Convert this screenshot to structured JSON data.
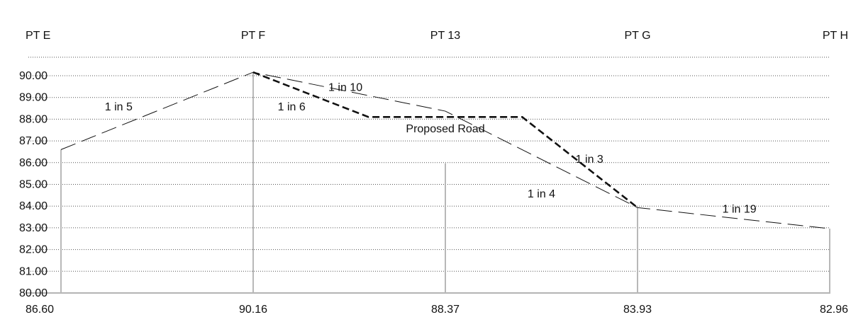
{
  "chart_data": {
    "type": "line",
    "title": "",
    "xlabel": "",
    "ylabel": "",
    "ylim": [
      80,
      90
    ],
    "grid": true,
    "y_ticks": [
      "90.00",
      "89.00",
      "88.00",
      "87.00",
      "86.00",
      "85.00",
      "84.00",
      "83.00",
      "82.00",
      "81.00",
      "80.00"
    ],
    "points": [
      {
        "label": "PT E",
        "level": "86.60",
        "x": 0,
        "y": 86.6
      },
      {
        "label": "PT F",
        "level": "90.16",
        "x": 1,
        "y": 90.16
      },
      {
        "label": "PT 13",
        "level": "88.37",
        "x": 2,
        "y": 88.37
      },
      {
        "label": "PT G",
        "level": "83.93",
        "x": 3,
        "y": 83.93
      },
      {
        "label": "PT H",
        "level": "82.96",
        "x": 4,
        "y": 82.96
      }
    ],
    "series": [
      {
        "style": "dashed-thin",
        "points": [
          [
            0,
            86.6
          ],
          [
            1,
            90.16
          ],
          [
            2,
            88.37
          ],
          [
            3,
            83.93
          ],
          [
            4,
            82.96
          ]
        ]
      },
      {
        "name": "Proposed Road",
        "style": "dashed-thick",
        "points": [
          [
            1,
            90.16
          ],
          [
            1.6,
            88.1
          ],
          [
            2.4,
            88.1
          ],
          [
            3,
            83.93
          ]
        ]
      }
    ],
    "annotations": [
      {
        "text": "1 in 5",
        "x": 0.3,
        "y": 88.4
      },
      {
        "text": "1 in 10",
        "x": 1.48,
        "y": 89.3
      },
      {
        "text": "1 in 6",
        "x": 1.2,
        "y": 88.4
      },
      {
        "text": "Proposed Road",
        "x": 2.0,
        "y": 87.4
      },
      {
        "text": "1 in 3",
        "x": 2.75,
        "y": 86.0
      },
      {
        "text": "1 in 4",
        "x": 2.5,
        "y": 84.4
      },
      {
        "text": "1 in 19",
        "x": 3.53,
        "y": 83.7
      }
    ]
  }
}
